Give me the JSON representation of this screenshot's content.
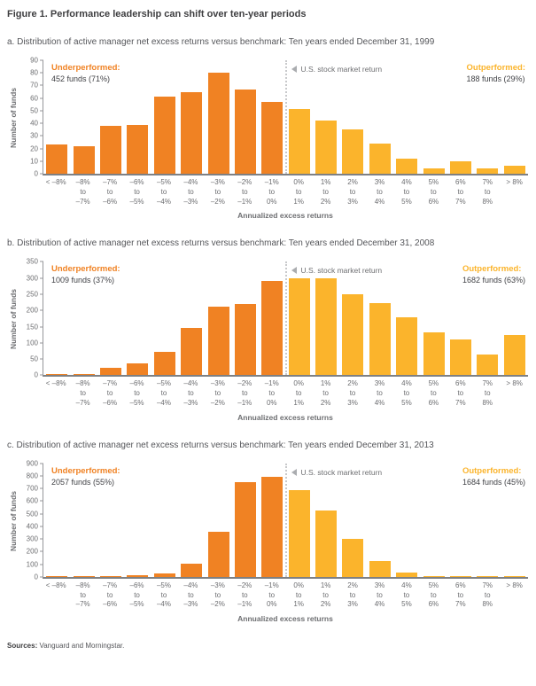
{
  "title": "Figure 1. Performance leadership can shift over ten-year periods",
  "colors": {
    "underperformed": "#f08223",
    "outperformed": "#fbb42c",
    "axis_line": "#95969a",
    "baseline": "#7e8083",
    "dashed_line": "#c8c9cb",
    "text_gray": "#6d6e71"
  },
  "footer": {
    "sources_label": "Sources:",
    "sources_text": " Vanguard and Morningstar."
  },
  "chart_data": [
    {
      "type": "bar",
      "panel": "a",
      "subtitle": "a. Distribution of active manager net excess returns versus benchmark: Ten years ended December 31, 1999",
      "ylabel": "Number of funds",
      "xlabel": "Annualized excess returns",
      "ylim": [
        0,
        90
      ],
      "ytick_step": 10,
      "grid": false,
      "categories": [
        "< –8%",
        "–8% to –7%",
        "–7% to –6%",
        "–6% to –5%",
        "–5% to –4%",
        "–4% to –3%",
        "–3% to –2%",
        "–2% to –1%",
        "–1% to 0%",
        "0% to 1%",
        "1% to 2%",
        "2% to 3%",
        "3% to 4%",
        "4% to 5%",
        "5% to 6%",
        "6% to 7%",
        "7% to 8%",
        "> 8%"
      ],
      "values": [
        23,
        22,
        38,
        39,
        61,
        65,
        80,
        67,
        57,
        51,
        42,
        35,
        24,
        12,
        4,
        10,
        4,
        6
      ],
      "series": [
        {
          "name": "Underperformed",
          "color": "#f08223",
          "category_indexes": [
            0,
            8
          ]
        },
        {
          "name": "Outperformed",
          "color": "#fbb42c",
          "category_indexes": [
            9,
            17
          ]
        }
      ],
      "annotations": {
        "underperformed": {
          "label": "Underperformed:",
          "detail": "452 funds (71%)"
        },
        "outperformed": {
          "label": "Outperformed:",
          "detail": "188 funds (29%)"
        },
        "market_line": "U.S. stock market return"
      }
    },
    {
      "type": "bar",
      "panel": "b",
      "subtitle": "b. Distribution of active manager net excess returns versus benchmark: Ten years ended December 31, 2008",
      "ylabel": "Number of funds",
      "xlabel": "Annualized excess returns",
      "ylim": [
        0,
        350
      ],
      "ytick_step": 50,
      "grid": false,
      "categories": [
        "< –8%",
        "–8% to –7%",
        "–7% to –6%",
        "–6% to –5%",
        "–5% to –4%",
        "–4% to –3%",
        "–3% to –2%",
        "–2% to –1%",
        "–1% to 0%",
        "0% to 1%",
        "1% to 2%",
        "2% to 3%",
        "3% to 4%",
        "4% to 5%",
        "5% to 6%",
        "6% to 7%",
        "7% to 8%",
        "> 8%"
      ],
      "values": [
        4,
        3,
        24,
        38,
        73,
        146,
        211,
        220,
        290,
        300,
        300,
        250,
        222,
        180,
        132,
        110,
        63,
        125
      ],
      "series": [
        {
          "name": "Underperformed",
          "color": "#f08223",
          "category_indexes": [
            0,
            8
          ]
        },
        {
          "name": "Outperformed",
          "color": "#fbb42c",
          "category_indexes": [
            9,
            17
          ]
        }
      ],
      "annotations": {
        "underperformed": {
          "label": "Underperformed:",
          "detail": "1009 funds (37%)"
        },
        "outperformed": {
          "label": "Outperformed:",
          "detail": "1682 funds (63%)"
        },
        "market_line": "U.S. stock market return"
      }
    },
    {
      "type": "bar",
      "panel": "c",
      "subtitle": "c. Distribution of active manager net excess returns versus benchmark: Ten years ended December 31, 2013",
      "ylabel": "Number of funds",
      "xlabel": "Annualized excess returns",
      "ylim": [
        0,
        900
      ],
      "ytick_step": 100,
      "grid": false,
      "categories": [
        "< –8%",
        "–8% to –7%",
        "–7% to –6%",
        "–6% to –5%",
        "–5% to –4%",
        "–4% to –3%",
        "–3% to –2%",
        "–2% to –1%",
        "–1% to 0%",
        "0% to 1%",
        "1% to 2%",
        "2% to 3%",
        "3% to 4%",
        "4% to 5%",
        "5% to 6%",
        "6% to 7%",
        "7% to 8%",
        "> 8%"
      ],
      "values": [
        3,
        4,
        8,
        12,
        26,
        103,
        358,
        748,
        795,
        688,
        528,
        298,
        122,
        34,
        4,
        3,
        3,
        4
      ],
      "series": [
        {
          "name": "Underperformed",
          "color": "#f08223",
          "category_indexes": [
            0,
            8
          ]
        },
        {
          "name": "Outperformed",
          "color": "#fbb42c",
          "category_indexes": [
            9,
            17
          ]
        }
      ],
      "annotations": {
        "underperformed": {
          "label": "Underperformed:",
          "detail": "2057 funds (55%)"
        },
        "outperformed": {
          "label": "Outperformed:",
          "detail": "1684 funds (45%)"
        },
        "market_line": "U.S. stock market return"
      }
    }
  ]
}
